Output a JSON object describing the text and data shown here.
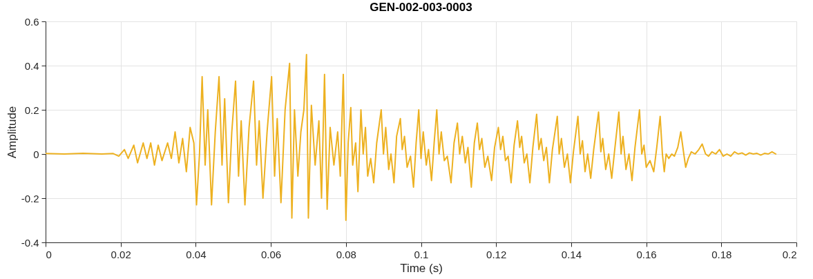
{
  "chart_data": {
    "type": "line",
    "title": "GEN-002-003-0003",
    "xlabel": "Time (s)",
    "ylabel": "Amplitude",
    "xlim": [
      0,
      0.2
    ],
    "ylim": [
      -0.4,
      0.6
    ],
    "xticks": [
      0,
      0.02,
      0.04,
      0.06,
      0.08,
      0.1,
      0.12,
      0.14,
      0.16,
      0.18,
      0.2
    ],
    "yticks": [
      -0.4,
      -0.2,
      0,
      0.2,
      0.4,
      0.6
    ],
    "grid": true,
    "marker": "none",
    "line_style": "solid",
    "series": [
      {
        "color": "#edb120",
        "x": [
          0,
          0.005,
          0.01,
          0.015,
          0.018,
          0.0195,
          0.021,
          0.022,
          0.0235,
          0.0245,
          0.026,
          0.027,
          0.028,
          0.029,
          0.03,
          0.031,
          0.0325,
          0.0335,
          0.0345,
          0.0355,
          0.0365,
          0.0375,
          0.0385,
          0.0395,
          0.0402,
          0.041,
          0.0417,
          0.0425,
          0.0432,
          0.0442,
          0.0452,
          0.0462,
          0.047,
          0.0477,
          0.0487,
          0.0496,
          0.0506,
          0.0514,
          0.0521,
          0.0531,
          0.0542,
          0.0554,
          0.0562,
          0.0569,
          0.0579,
          0.059,
          0.0602,
          0.061,
          0.0617,
          0.0627,
          0.0638,
          0.065,
          0.0656,
          0.0663,
          0.0672,
          0.068,
          0.0688,
          0.0695,
          0.07,
          0.0708,
          0.0718,
          0.0728,
          0.0735,
          0.0743,
          0.075,
          0.0758,
          0.0768,
          0.0778,
          0.0785,
          0.0793,
          0.08,
          0.0806,
          0.0813,
          0.0818,
          0.0826,
          0.0832,
          0.084,
          0.0846,
          0.0852,
          0.0858,
          0.0866,
          0.0874,
          0.0882,
          0.0894,
          0.09,
          0.0906,
          0.0914,
          0.092,
          0.0928,
          0.0935,
          0.0945,
          0.095,
          0.0956,
          0.0963,
          0.0972,
          0.098,
          0.0987,
          0.0994,
          0.1,
          0.1006,
          0.1014,
          0.102,
          0.1028,
          0.1035,
          0.1042,
          0.1048,
          0.1054,
          0.1062,
          0.107,
          0.108,
          0.1088,
          0.1097,
          0.1103,
          0.111,
          0.1118,
          0.1125,
          0.1134,
          0.1142,
          0.115,
          0.1156,
          0.1162,
          0.117,
          0.1178,
          0.1188,
          0.1196,
          0.1206,
          0.1212,
          0.1218,
          0.1225,
          0.1232,
          0.124,
          0.1248,
          0.1257,
          0.1263,
          0.1268,
          0.1275,
          0.1282,
          0.129,
          0.1298,
          0.1308,
          0.1314,
          0.132,
          0.1327,
          0.1334,
          0.1342,
          0.135,
          0.1363,
          0.1368,
          0.1374,
          0.1382,
          0.139,
          0.1398,
          0.1406,
          0.1418,
          0.1424,
          0.143,
          0.1437,
          0.1444,
          0.1452,
          0.146,
          0.1473,
          0.1479,
          0.1484,
          0.1492,
          0.15,
          0.1508,
          0.1516,
          0.1527,
          0.1533,
          0.1538,
          0.1546,
          0.1554,
          0.1562,
          0.157,
          0.1582,
          0.1588,
          0.1594,
          0.16,
          0.161,
          0.162,
          0.1628,
          0.1637,
          0.1643,
          0.1648,
          0.1653,
          0.166,
          0.1668,
          0.1675,
          0.1684,
          0.1692,
          0.17,
          0.1705,
          0.1712,
          0.172,
          0.173,
          0.174,
          0.1749,
          0.1758,
          0.1766,
          0.1775,
          0.1785,
          0.1795,
          0.1805,
          0.1815,
          0.1825,
          0.1835,
          0.1845,
          0.1855,
          0.1865,
          0.1875,
          0.1885,
          0.1895,
          0.1905,
          0.1915,
          0.1925,
          0.1935,
          0.1945
        ],
        "values": [
          0.002,
          0,
          0.003,
          0,
          0.002,
          -0.01,
          0.02,
          -0.02,
          0.04,
          -0.04,
          0.05,
          -0.02,
          0.05,
          -0.05,
          0.04,
          -0.03,
          0.05,
          -0.02,
          0.1,
          -0.04,
          0.07,
          -0.08,
          0.12,
          0.05,
          -0.23,
          0,
          0.35,
          -0.05,
          0.2,
          -0.23,
          0.1,
          0.35,
          -0.05,
          0.25,
          -0.22,
          0.1,
          0.33,
          -0.1,
          0.15,
          -0.23,
          0.12,
          0.33,
          -0.05,
          0.15,
          -0.2,
          0.1,
          0.35,
          -0.1,
          0.16,
          -0.22,
          0.2,
          0.41,
          -0.29,
          0.2,
          -0.1,
          0.1,
          0.2,
          0.45,
          -0.29,
          0.22,
          -0.05,
          0.15,
          -0.2,
          0.36,
          -0.25,
          0.12,
          -0.05,
          0.1,
          -0.1,
          0.36,
          -0.3,
          0.05,
          0.21,
          -0.05,
          0.05,
          -0.17,
          0.2,
          0,
          0.12,
          -0.1,
          -0.02,
          -0.13,
          0.05,
          0.2,
          0,
          0.12,
          -0.07,
          0,
          -0.13,
          0.08,
          0.16,
          0.02,
          0.08,
          -0.06,
          -0.01,
          -0.15,
          0.05,
          0.2,
          -0.02,
          0.1,
          -0.05,
          0.02,
          -0.12,
          0.05,
          0.2,
          0,
          0.1,
          -0.03,
          -0.01,
          -0.13,
          0.05,
          0.14,
          0,
          0.08,
          -0.04,
          0.03,
          -0.15,
          0.05,
          0.14,
          0.02,
          0.07,
          -0.06,
          -0.01,
          -0.12,
          0.03,
          0.12,
          0.02,
          0.08,
          -0.03,
          -0.01,
          -0.13,
          0.04,
          0.15,
          0.03,
          0.08,
          -0.04,
          0,
          -0.13,
          0.03,
          0.18,
          0.02,
          0.07,
          -0.03,
          0.03,
          -0.13,
          0.02,
          0.17,
          0,
          0.07,
          -0.06,
          0,
          -0.13,
          0.01,
          0.17,
          0,
          0.06,
          -0.08,
          0,
          -0.11,
          0.02,
          0.19,
          0.01,
          0.07,
          -0.07,
          0,
          -0.11,
          0.02,
          0.19,
          0,
          0.08,
          -0.07,
          0,
          -0.12,
          0.03,
          0.2,
          0,
          0.04,
          -0.06,
          -0.03,
          -0.08,
          0.03,
          0.17,
          0,
          -0.08,
          0,
          -0.02,
          0,
          -0.01,
          0.03,
          0.1,
          0,
          -0.06,
          -0.02,
          0.01,
          0,
          0.02,
          0.045,
          0,
          -0.01,
          0.01,
          0,
          0.02,
          -0.01,
          0,
          -0.01,
          0.01,
          0,
          0.005,
          -0.005,
          0.005,
          0,
          0.003,
          -0.005,
          0.003,
          0,
          0.01,
          0
        ]
      }
    ]
  }
}
